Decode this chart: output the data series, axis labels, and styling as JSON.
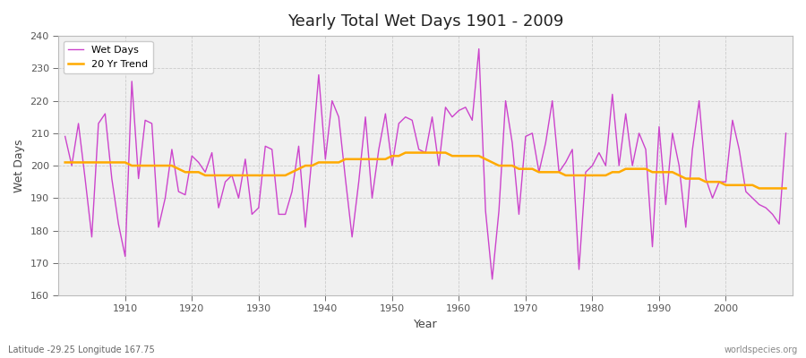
{
  "title": "Yearly Total Wet Days 1901 - 2009",
  "xlabel": "Year",
  "ylabel": "Wet Days",
  "bottom_left_label": "Latitude -29.25 Longitude 167.75",
  "bottom_right_label": "worldspecies.org",
  "legend_entries": [
    "Wet Days",
    "20 Yr Trend"
  ],
  "wet_days_color": "#cc44cc",
  "trend_color": "#ffaa00",
  "plot_bg_color": "#f0f0f0",
  "fig_bg_color": "#ffffff",
  "ylim": [
    160,
    240
  ],
  "yticks": [
    160,
    170,
    180,
    190,
    200,
    210,
    220,
    230,
    240
  ],
  "years": [
    1901,
    1902,
    1903,
    1904,
    1905,
    1906,
    1907,
    1908,
    1909,
    1910,
    1911,
    1912,
    1913,
    1914,
    1915,
    1916,
    1917,
    1918,
    1919,
    1920,
    1921,
    1922,
    1923,
    1924,
    1925,
    1926,
    1927,
    1928,
    1929,
    1930,
    1931,
    1932,
    1933,
    1934,
    1935,
    1936,
    1937,
    1938,
    1939,
    1940,
    1941,
    1942,
    1943,
    1944,
    1945,
    1946,
    1947,
    1948,
    1949,
    1950,
    1951,
    1952,
    1953,
    1954,
    1955,
    1956,
    1957,
    1958,
    1959,
    1960,
    1961,
    1962,
    1963,
    1964,
    1965,
    1966,
    1967,
    1968,
    1969,
    1970,
    1971,
    1972,
    1973,
    1974,
    1975,
    1976,
    1977,
    1978,
    1979,
    1980,
    1981,
    1982,
    1983,
    1984,
    1985,
    1986,
    1987,
    1988,
    1989,
    1990,
    1991,
    1992,
    1993,
    1994,
    1995,
    1996,
    1997,
    1998,
    1999,
    2000,
    2001,
    2002,
    2003,
    2004,
    2005,
    2006,
    2007,
    2008,
    2009
  ],
  "wet_days": [
    209,
    200,
    213,
    196,
    178,
    213,
    216,
    196,
    182,
    172,
    226,
    196,
    214,
    213,
    181,
    190,
    205,
    192,
    191,
    203,
    201,
    198,
    204,
    187,
    195,
    197,
    190,
    202,
    185,
    187,
    206,
    205,
    185,
    185,
    192,
    206,
    181,
    203,
    228,
    202,
    220,
    215,
    196,
    178,
    195,
    215,
    190,
    205,
    216,
    200,
    213,
    215,
    214,
    205,
    204,
    215,
    200,
    218,
    215,
    217,
    218,
    214,
    236,
    186,
    165,
    186,
    220,
    207,
    185,
    209,
    210,
    198,
    207,
    220,
    198,
    201,
    205,
    168,
    198,
    200,
    204,
    200,
    222,
    200,
    216,
    200,
    210,
    205,
    175,
    212,
    188,
    210,
    200,
    181,
    205,
    220,
    196,
    190,
    195,
    195,
    214,
    205,
    192,
    190,
    188,
    187,
    185,
    182,
    210
  ],
  "trend": [
    201,
    201,
    201,
    201,
    201,
    201,
    201,
    201,
    201,
    201,
    200,
    200,
    200,
    200,
    200,
    200,
    200,
    199,
    198,
    198,
    198,
    197,
    197,
    197,
    197,
    197,
    197,
    197,
    197,
    197,
    197,
    197,
    197,
    197,
    198,
    199,
    200,
    200,
    201,
    201,
    201,
    201,
    202,
    202,
    202,
    202,
    202,
    202,
    202,
    203,
    203,
    204,
    204,
    204,
    204,
    204,
    204,
    204,
    203,
    203,
    203,
    203,
    203,
    202,
    201,
    200,
    200,
    200,
    199,
    199,
    199,
    198,
    198,
    198,
    198,
    197,
    197,
    197,
    197,
    197,
    197,
    197,
    198,
    198,
    199,
    199,
    199,
    199,
    198,
    198,
    198,
    198,
    197,
    196,
    196,
    196,
    195,
    195,
    195,
    194,
    194,
    194,
    194,
    194,
    193,
    193,
    193,
    193,
    193
  ]
}
